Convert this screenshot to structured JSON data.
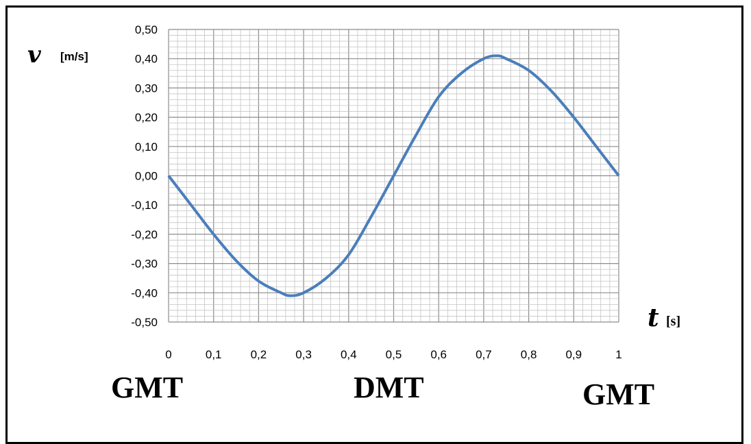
{
  "chart_data": {
    "type": "line",
    "ylabel_symbol": "v",
    "ylabel_unit": "[m/s]",
    "xlabel_symbol": "t",
    "xlabel_unit": "[s]",
    "xlim": [
      0,
      1
    ],
    "ylim": [
      -0.5,
      0.5
    ],
    "x_ticks": [
      "0",
      "0,1",
      "0,2",
      "0,3",
      "0,4",
      "0,5",
      "0,6",
      "0,7",
      "0,8",
      "0,9",
      "1"
    ],
    "y_ticks": [
      "0,50",
      "0,40",
      "0,30",
      "0,20",
      "0,10",
      "0,00",
      "-0,10",
      "-0,20",
      "-0,30",
      "-0,40",
      "-0,50"
    ],
    "grid": true,
    "series": [
      {
        "color": "#4A7EBB",
        "x": [
          0,
          0.05,
          0.1,
          0.15,
          0.2,
          0.25,
          0.27,
          0.3,
          0.35,
          0.4,
          0.45,
          0.5,
          0.55,
          0.6,
          0.65,
          0.7,
          0.73,
          0.75,
          0.8,
          0.85,
          0.9,
          0.95,
          1
        ],
        "y": [
          0,
          -0.1,
          -0.2,
          -0.29,
          -0.36,
          -0.4,
          -0.41,
          -0.4,
          -0.35,
          -0.27,
          -0.14,
          0.0,
          0.14,
          0.27,
          0.35,
          0.4,
          0.41,
          0.4,
          0.36,
          0.29,
          0.2,
          0.1,
          0
        ]
      }
    ],
    "annotations": [
      "GMT",
      "DMT",
      "GMT"
    ]
  }
}
